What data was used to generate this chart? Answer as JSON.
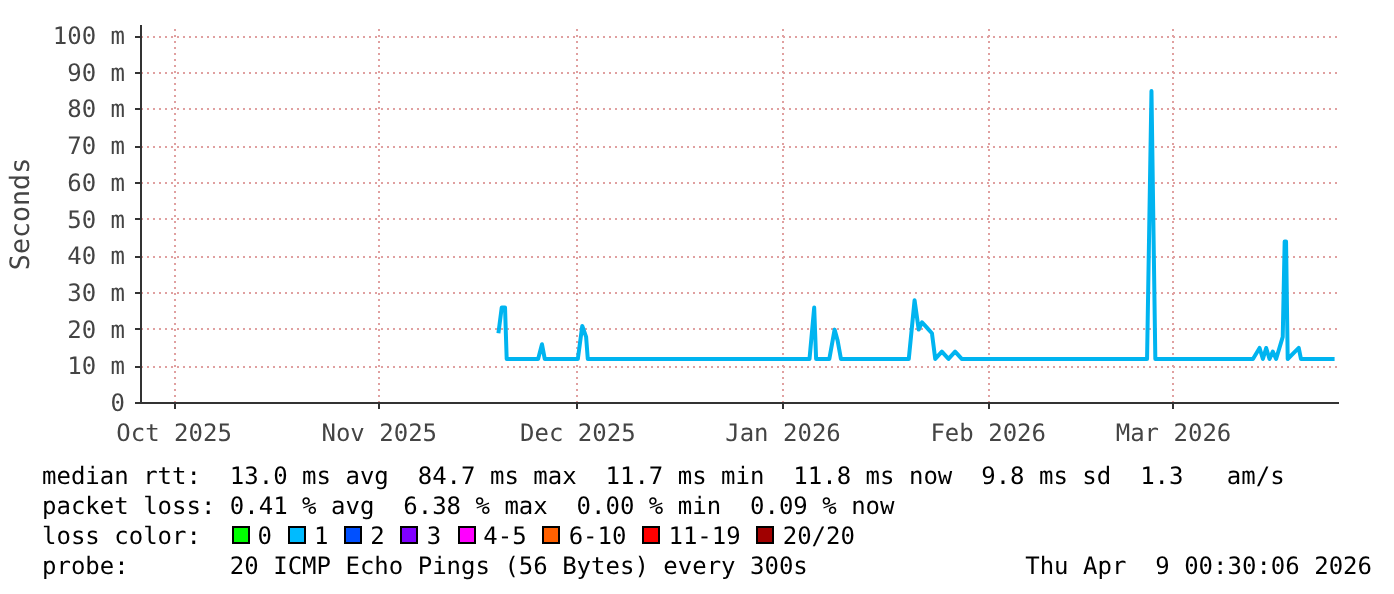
{
  "chart_data": {
    "type": "line",
    "ylabel": "Seconds",
    "x": [
      "2025-11-19",
      "2025-11-19T12:00",
      "2025-11-20",
      "2025-11-20T06:00",
      "2025-11-25",
      "2025-11-25T14:00",
      "2025-11-26",
      "2025-12-01",
      "2025-12-01T16:00",
      "2025-12-02T06:00",
      "2025-12-02T12:00",
      "2026-01-05",
      "2026-01-05T17:00",
      "2026-01-06",
      "2026-01-08",
      "2026-01-08T19:00",
      "2026-01-09T06:00",
      "2026-01-09T18:00",
      "2026-01-20",
      "2026-01-20T21:00",
      "2026-01-21T12:00",
      "2026-01-22",
      "2026-01-22T12:00",
      "2026-01-23",
      "2026-01-23T12:00",
      "2026-01-24",
      "2026-01-25",
      "2026-01-26",
      "2026-01-27",
      "2026-01-28",
      "2026-02-25",
      "2026-02-25T16:00",
      "2026-02-26T06:00",
      "2026-03-13",
      "2026-03-14",
      "2026-03-14T12:00",
      "2026-03-15",
      "2026-03-15T12:00",
      "2026-03-16",
      "2026-03-16T12:00",
      "2026-03-17T12:00",
      "2026-03-17T19:00",
      "2026-03-18",
      "2026-03-18T06:00",
      "2026-03-19T22:00",
      "2026-03-20T06:00",
      "2026-03-25T08:00"
    ],
    "series": [
      {
        "color": "#00b4f0",
        "values": [
          19,
          26,
          26,
          12,
          12,
          16,
          12,
          12,
          21,
          18,
          12,
          12,
          26,
          12,
          12,
          20,
          17,
          12,
          12,
          28,
          20,
          22,
          21,
          20,
          19,
          12,
          14,
          12,
          14,
          12,
          12,
          85,
          12,
          12,
          15,
          12,
          15,
          12,
          14,
          12,
          18,
          44,
          44,
          12,
          15,
          12,
          12
        ]
      }
    ],
    "xlim": [
      "2025-09-26",
      "2026-03-26"
    ],
    "xticks": [
      {
        "value": "2025-10-01",
        "label": "Oct 2025"
      },
      {
        "value": "2025-11-01",
        "label": "Nov 2025"
      },
      {
        "value": "2025-12-01",
        "label": "Dec 2025"
      },
      {
        "value": "2026-01-01",
        "label": "Jan 2026"
      },
      {
        "value": "2026-02-01",
        "label": "Feb 2026"
      },
      {
        "value": "2026-03-01",
        "label": "Mar 2026"
      }
    ],
    "ylim": [
      0,
      103
    ],
    "yticks": [
      0,
      {
        "value": 10,
        "label": "10 m"
      },
      {
        "value": 20,
        "label": "20 m"
      },
      {
        "value": 30,
        "label": "30 m"
      },
      {
        "value": 40,
        "label": "40 m"
      },
      {
        "value": 50,
        "label": "50 m"
      },
      {
        "value": 60,
        "label": "60 m"
      },
      {
        "value": 70,
        "label": "70 m"
      },
      {
        "value": 80,
        "label": "80 m"
      },
      {
        "value": 90,
        "label": "90 m"
      },
      {
        "value": 100,
        "label": "100 m"
      }
    ],
    "grid": true,
    "marker": "none",
    "line_style": "solid",
    "annotations": [
      "median rtt:  13.0 ms avg  84.7 ms max  11.7 ms min  11.8 ms now  9.8 ms sd  1.3   am/s",
      "packet loss: 0.41 % avg  6.38 % max  0.00 % min  0.09 % now",
      "loss color:  0  1  2  3  4-5  6-10  11-19  20/20",
      "probe:       20 ICMP Echo Pings (56 Bytes) every 300s",
      "Thu Apr  9 00:30:06 2026"
    ]
  }
}
